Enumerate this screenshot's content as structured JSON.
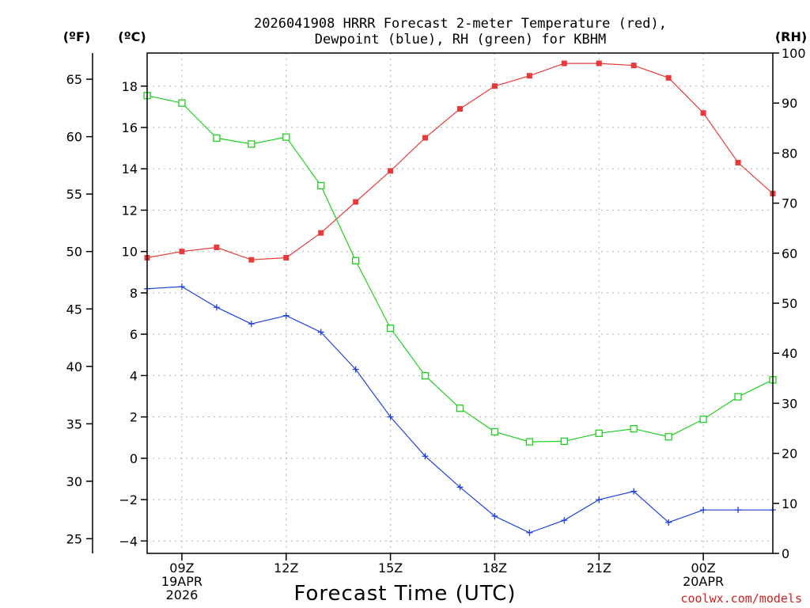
{
  "chart_data": {
    "type": "line",
    "title_lines": [
      "2026041908 HRRR Forecast 2-meter Temperature (red),",
      "Dewpoint (blue), RH (green) for KBHM"
    ],
    "xlabel": "Forecast Time (UTC)",
    "credit": "coolwx.com/models",
    "left_axis_f": {
      "unit": "(ºF)",
      "ticks": [
        65,
        60,
        55,
        50,
        45,
        40,
        35,
        30,
        25
      ]
    },
    "left_axis_c": {
      "unit": "(ºC)",
      "range": [
        -4.6,
        19.6
      ],
      "ticks": [
        18,
        16,
        14,
        12,
        10,
        8,
        6,
        4,
        2,
        0,
        -2,
        -4
      ],
      "tick_labels": [
        "18",
        "16",
        "14",
        "12",
        "10",
        "8",
        "6",
        "4",
        "2",
        "0",
        "−2",
        "−4"
      ]
    },
    "right_axis": {
      "unit": "(RH)",
      "range": [
        0,
        100
      ],
      "ticks": [
        100,
        90,
        80,
        70,
        60,
        50,
        40,
        30,
        20,
        10,
        0
      ]
    },
    "x_range": [
      8,
      26
    ],
    "x_ticks": [
      {
        "hour": 9,
        "lines": [
          "09Z",
          "19APR",
          "2026"
        ]
      },
      {
        "hour": 12,
        "lines": [
          "12Z"
        ]
      },
      {
        "hour": 15,
        "lines": [
          "15Z"
        ]
      },
      {
        "hour": 18,
        "lines": [
          "18Z"
        ]
      },
      {
        "hour": 21,
        "lines": [
          "21Z"
        ]
      },
      {
        "hour": 24,
        "lines": [
          "00Z",
          "20APR"
        ]
      }
    ],
    "x": [
      8,
      9,
      10,
      11,
      12,
      13,
      14,
      15,
      16,
      17,
      18,
      19,
      20,
      21,
      22,
      23,
      24,
      25,
      26
    ],
    "series": [
      {
        "name": "Temperature",
        "axis": "celsius",
        "color": "#e83a3a",
        "marker": "filled-square",
        "values": [
          9.7,
          10.0,
          10.2,
          9.6,
          9.7,
          10.9,
          12.4,
          13.9,
          15.5,
          16.9,
          18.0,
          18.5,
          19.1,
          19.1,
          19.0,
          18.4,
          16.7,
          14.3,
          12.8
        ]
      },
      {
        "name": "Dewpoint",
        "axis": "celsius",
        "color": "#2040e0",
        "marker": "plus",
        "values": [
          8.2,
          8.3,
          7.3,
          6.5,
          6.9,
          6.1,
          4.3,
          2.0,
          0.1,
          -1.4,
          -2.8,
          -3.6,
          -3.0,
          -2.0,
          -1.6,
          -3.1,
          -2.5,
          -2.5,
          -2.5
        ]
      },
      {
        "name": "RH",
        "axis": "rh",
        "color": "#20d020",
        "marker": "open-square",
        "values": [
          91.5,
          90.0,
          83.0,
          81.8,
          83.2,
          73.5,
          58.5,
          45.0,
          35.5,
          29.0,
          24.3,
          22.3,
          22.4,
          24.0,
          24.9,
          23.3,
          26.8,
          31.3,
          34.7
        ]
      }
    ]
  }
}
